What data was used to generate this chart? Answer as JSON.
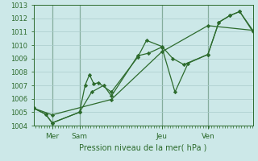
{
  "xlabel": "Pression niveau de la mer( hPa )",
  "bg_color": "#cce8e8",
  "grid_color": "#aacccc",
  "line_color": "#2d6b2d",
  "vline_color": "#336633",
  "ylim": [
    1004,
    1013
  ],
  "yticks": [
    1004,
    1005,
    1006,
    1007,
    1008,
    1009,
    1010,
    1011,
    1012,
    1013
  ],
  "xlim": [
    0,
    1
  ],
  "day_positions": [
    0.085,
    0.21,
    0.585,
    0.795
  ],
  "day_labels": [
    "Mer",
    "Sam",
    "Jeu",
    "Ven"
  ],
  "series1_x": [
    0.0,
    0.055,
    0.085,
    0.21,
    0.235,
    0.255,
    0.275,
    0.295,
    0.355,
    0.475,
    0.515,
    0.585,
    0.635,
    0.685,
    0.795,
    0.845,
    0.895,
    0.94,
    1.0
  ],
  "series1_y": [
    1005.3,
    1004.85,
    1004.2,
    1005.0,
    1007.0,
    1007.8,
    1007.1,
    1007.2,
    1006.5,
    1009.1,
    1010.35,
    1009.9,
    1009.0,
    1008.55,
    1009.3,
    1011.7,
    1012.2,
    1012.5,
    1011.0
  ],
  "series2_x": [
    0.0,
    0.055,
    0.085,
    0.21,
    0.265,
    0.32,
    0.355,
    0.475,
    0.525,
    0.585,
    0.645,
    0.705,
    0.795,
    0.845,
    0.895,
    0.94,
    1.0
  ],
  "series2_y": [
    1005.3,
    1004.85,
    1004.2,
    1005.0,
    1006.5,
    1007.0,
    1006.2,
    1009.2,
    1009.4,
    1009.85,
    1006.5,
    1008.65,
    1009.3,
    1011.7,
    1012.2,
    1012.5,
    1011.1
  ],
  "series3_x": [
    0.0,
    0.085,
    0.355,
    0.585,
    0.795,
    1.0
  ],
  "series3_y": [
    1005.3,
    1004.8,
    1005.95,
    1009.5,
    1011.45,
    1011.1
  ]
}
